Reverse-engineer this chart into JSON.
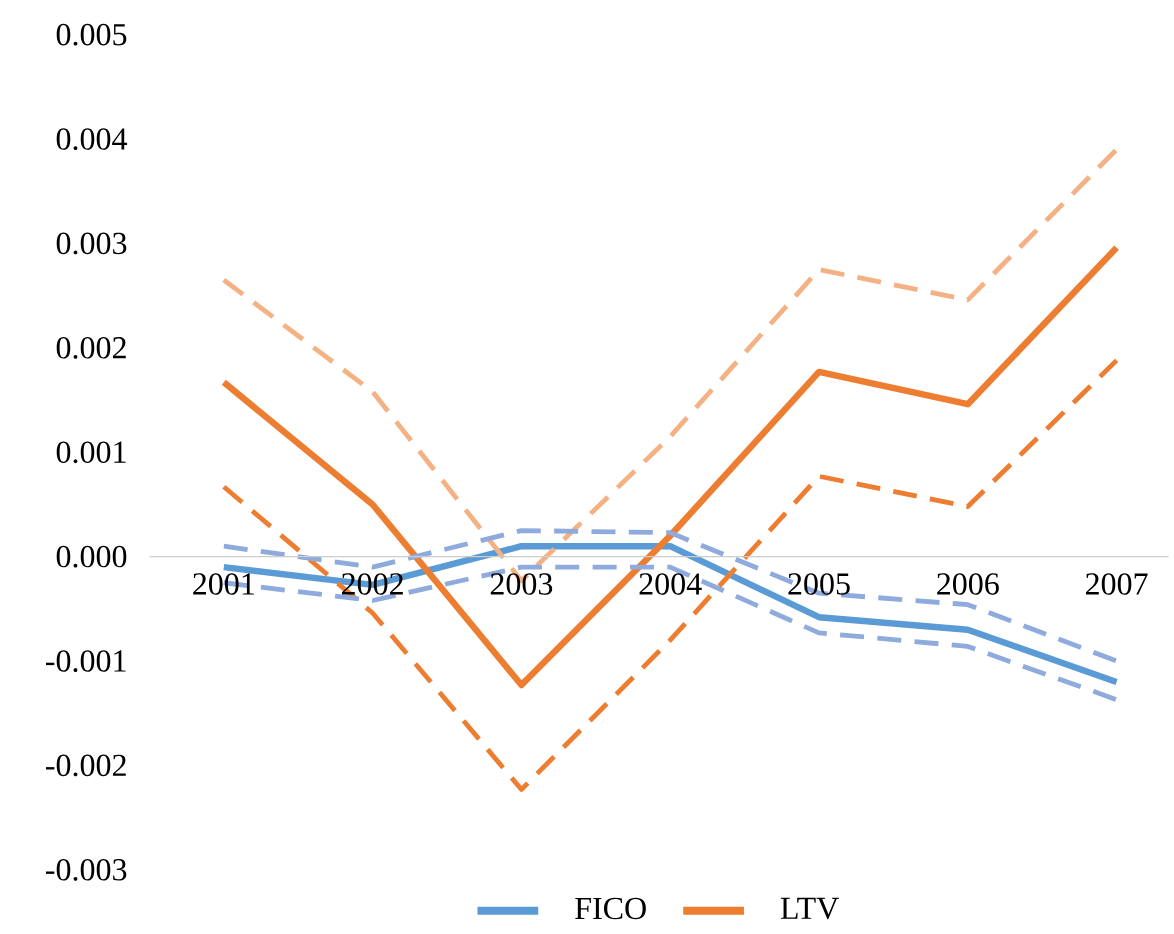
{
  "chart_data": {
    "type": "line",
    "categories": [
      "2001",
      "2002",
      "2003",
      "2004",
      "2005",
      "2006",
      "2007"
    ],
    "series": [
      {
        "name": "FICO",
        "color": "#5b9bd5",
        "line_style": "solid",
        "values": [
          -0.0001,
          -0.00027,
          0.0001,
          0.0001,
          -0.00058,
          -0.0007,
          -0.0012
        ]
      },
      {
        "name": "LTV",
        "color": "#ed7d31",
        "line_style": "solid",
        "values": [
          0.00167,
          0.0005,
          -0.00123,
          0.0002,
          0.00177,
          0.00146,
          0.00296
        ]
      },
      {
        "color": "#f4b183",
        "line_style": "dashed",
        "values": [
          0.00265,
          0.00158,
          -0.00023,
          0.00115,
          0.00275,
          0.00246,
          0.0039
        ]
      },
      {
        "color": "#ed7d31",
        "line_style": "dashed",
        "values": [
          0.00067,
          -0.00054,
          -0.00223,
          -0.0008,
          0.00077,
          0.00048,
          0.00188
        ]
      },
      {
        "color": "#8faadc",
        "line_style": "dashed",
        "values": [
          0.0001,
          -0.0001,
          0.00025,
          0.00023,
          -0.00035,
          -0.00046,
          -0.001
        ]
      },
      {
        "color": "#8faadc",
        "line_style": "dashed",
        "values": [
          -0.00025,
          -0.00042,
          -0.0001,
          -0.0001,
          -0.00073,
          -0.00086,
          -0.00137
        ]
      }
    ],
    "ylim": [
      -0.003,
      0.005
    ],
    "yticks": [
      {
        "value": -0.003,
        "label": "-0.003"
      },
      {
        "value": -0.002,
        "label": "-0.002"
      },
      {
        "value": -0.001,
        "label": "-0.001"
      },
      {
        "value": 0,
        "label": "0.000"
      },
      0.001,
      0.002,
      0.003,
      0.004,
      0.005
    ],
    "grid": false,
    "legend": "bottom",
    "marker": "none"
  }
}
